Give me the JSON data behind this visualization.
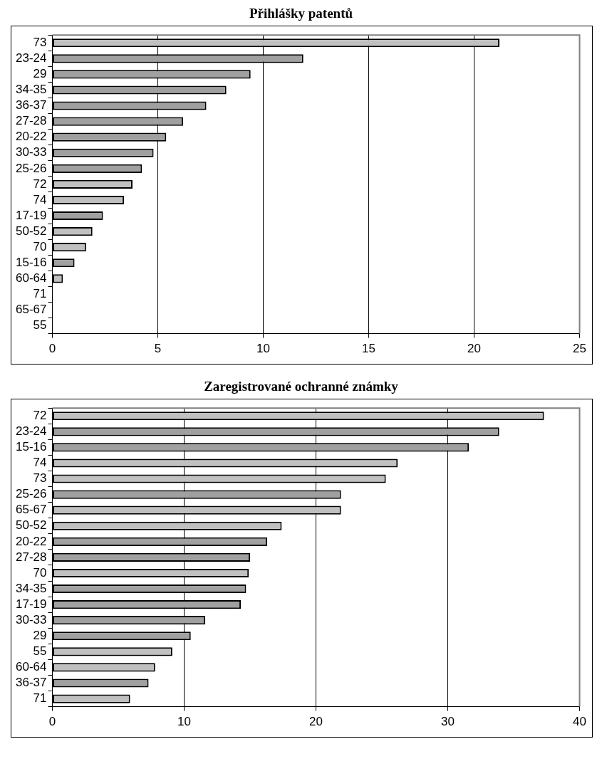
{
  "chart_data": [
    {
      "type": "bar",
      "orientation": "horizontal",
      "title": "Přihlášky patentů",
      "categories": [
        "73",
        "23-24",
        "29",
        "34-35",
        "36-37",
        "27-28",
        "20-22",
        "30-33",
        "25-26",
        "72",
        "74",
        "17-19",
        "50-52",
        "70",
        "15-16",
        "60-64",
        "71",
        "65-67",
        "55"
      ],
      "values": [
        21.2,
        11.9,
        9.4,
        8.25,
        7.3,
        6.2,
        5.4,
        4.8,
        4.25,
        3.8,
        3.4,
        2.4,
        1.9,
        1.6,
        1.05,
        0.5,
        0,
        0,
        0
      ],
      "colors": [
        "#c0c0c0",
        "#a0a0a0",
        "#a0a0a0",
        "#a0a0a0",
        "#a0a0a0",
        "#a0a0a0",
        "#a0a0a0",
        "#a0a0a0",
        "#a0a0a0",
        "#c0c0c0",
        "#c0c0c0",
        "#a0a0a0",
        "#c0c0c0",
        "#c0c0c0",
        "#a0a0a0",
        "#c0c0c0",
        "#c0c0c0",
        "#c0c0c0",
        "#c0c0c0"
      ],
      "xlim": [
        0,
        25
      ],
      "xticks": [
        0,
        5,
        10,
        15,
        20,
        25
      ],
      "grid": "x",
      "legend": false
    },
    {
      "type": "bar",
      "orientation": "horizontal",
      "title": "Zaregistrované ochranné známky",
      "categories": [
        "72",
        "23-24",
        "15-16",
        "74",
        "73",
        "25-26",
        "65-67",
        "50-52",
        "20-22",
        "27-28",
        "70",
        "34-35",
        "17-19",
        "30-33",
        "29",
        "55",
        "60-64",
        "36-37",
        "71"
      ],
      "values": [
        37.3,
        33.9,
        31.6,
        26.2,
        25.3,
        21.9,
        21.9,
        17.4,
        16.3,
        15.0,
        14.9,
        14.7,
        14.3,
        11.6,
        10.5,
        9.1,
        7.8,
        7.3,
        5.9
      ],
      "colors": [
        "#c0c0c0",
        "#a0a0a0",
        "#a0a0a0",
        "#c0c0c0",
        "#c0c0c0",
        "#a0a0a0",
        "#c0c0c0",
        "#c0c0c0",
        "#a0a0a0",
        "#a0a0a0",
        "#c0c0c0",
        "#a0a0a0",
        "#a0a0a0",
        "#a0a0a0",
        "#a0a0a0",
        "#c0c0c0",
        "#c0c0c0",
        "#a0a0a0",
        "#c0c0c0"
      ],
      "xlim": [
        0,
        40
      ],
      "xticks": [
        0,
        10,
        20,
        30,
        40
      ],
      "grid": "x",
      "legend": false
    }
  ]
}
